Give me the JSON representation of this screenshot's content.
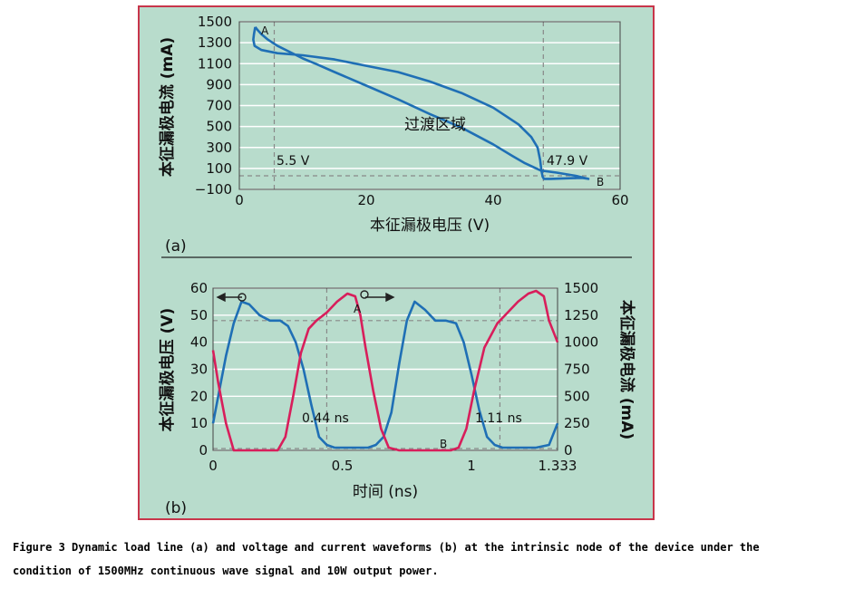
{
  "chart_data": [
    {
      "type": "line",
      "panel_label": "(a)",
      "xlabel": "本征漏极电压 (V)",
      "ylabel": "本征漏极电流 (mA)",
      "xlim": [
        0,
        60
      ],
      "ylim": [
        -100,
        1500
      ],
      "x_ticks": [
        "0",
        "20",
        "40",
        "60"
      ],
      "y_ticks": [
        "−100",
        "100",
        "300",
        "500",
        "700",
        "900",
        "1100",
        "1300",
        "1500"
      ],
      "grid": "horizontal",
      "annotations": {
        "region": "过渡区域",
        "point_a": "A",
        "point_b": "B",
        "v_left": "5.5 V",
        "v_right": "47.9 V"
      },
      "reference_lines": {
        "x": [
          5.5,
          47.9
        ],
        "y": [
          30
        ]
      },
      "series": [
        {
          "x": [
            2.5,
            2.3,
            2.2,
            2.4,
            3.5,
            6,
            10,
            15,
            20,
            25,
            30,
            35,
            40,
            44,
            46,
            47,
            47.4,
            47.6,
            47.8,
            48,
            48.3,
            49,
            51,
            54,
            55,
            53,
            50,
            47.5,
            45,
            43,
            40,
            35,
            30,
            25,
            20,
            15,
            12,
            10,
            8,
            6,
            4.5,
            3.5,
            2.9,
            2.5
          ],
          "y": [
            1450,
            1380,
            1330,
            1270,
            1230,
            1200,
            1180,
            1140,
            1080,
            1020,
            930,
            820,
            680,
            520,
            400,
            300,
            180,
            80,
            20,
            0,
            0,
            0,
            5,
            10,
            0,
            30,
            60,
            80,
            150,
            220,
            330,
            490,
            620,
            760,
            890,
            1020,
            1100,
            1150,
            1210,
            1270,
            1330,
            1380,
            1420,
            1450
          ]
        }
      ]
    },
    {
      "type": "line",
      "panel_label": "(b)",
      "xlabel": "时间 (ns)",
      "ylabel_left": "本征漏极电压 (V)",
      "ylabel_right": "本征漏极电流 (mA)",
      "xlim": [
        0,
        1.333
      ],
      "ylim_left": [
        0,
        60
      ],
      "ylim_right": [
        0,
        1500
      ],
      "x_ticks": [
        "0",
        "0.5",
        "1",
        "1.333"
      ],
      "y_ticks_left": [
        "0",
        "10",
        "20",
        "30",
        "40",
        "50",
        "60"
      ],
      "y_ticks_right": [
        "0",
        "250",
        "500",
        "750",
        "1000",
        "1250",
        "1500"
      ],
      "grid": "horizontal",
      "annotations": {
        "t1": "0.44 ns",
        "t2": "1.11 ns",
        "point_a": "A",
        "point_b": "B"
      },
      "reference_lines": {
        "x": [
          0.44,
          1.11
        ],
        "y_left": [
          48
        ]
      },
      "series": [
        {
          "axis": "left",
          "color": "#1f6fb5",
          "x": [
            0,
            0.02,
            0.05,
            0.08,
            0.11,
            0.14,
            0.18,
            0.22,
            0.26,
            0.29,
            0.32,
            0.35,
            0.38,
            0.41,
            0.44,
            0.47,
            0.5,
            0.55,
            0.6,
            0.63,
            0.66,
            0.69,
            0.72,
            0.75,
            0.78,
            0.82,
            0.86,
            0.9,
            0.94,
            0.97,
            1.0,
            1.03,
            1.06,
            1.09,
            1.12,
            1.15,
            1.2,
            1.25,
            1.3,
            1.333
          ],
          "y": [
            10,
            20,
            35,
            47,
            55,
            54,
            50,
            48,
            48,
            46,
            40,
            30,
            17,
            5,
            2,
            1,
            1,
            1,
            1,
            2,
            5,
            14,
            32,
            48,
            55,
            52,
            48,
            48,
            47,
            40,
            28,
            15,
            5,
            2,
            1,
            1,
            1,
            1,
            2,
            10
          ]
        },
        {
          "axis": "left",
          "color": "#d81e5b",
          "x": [
            0,
            0.02,
            0.05,
            0.08,
            0.12,
            0.2,
            0.25,
            0.28,
            0.31,
            0.34,
            0.37,
            0.4,
            0.44,
            0.48,
            0.52,
            0.55,
            0.57,
            0.59,
            0.62,
            0.65,
            0.68,
            0.72,
            0.8,
            0.88,
            0.92,
            0.95,
            0.98,
            1.01,
            1.05,
            1.1,
            1.14,
            1.18,
            1.22,
            1.25,
            1.28,
            1.3,
            1.333
          ],
          "y": [
            37,
            25,
            10,
            0,
            0,
            0,
            0,
            5,
            20,
            36,
            45,
            48,
            51,
            55,
            58,
            57,
            50,
            38,
            22,
            8,
            1,
            0,
            0,
            0,
            0,
            1,
            8,
            22,
            38,
            47,
            51,
            55,
            58,
            59,
            57,
            48,
            40
          ]
        }
      ]
    }
  ],
  "caption": {
    "line1": "Figure 3 Dynamic load line (a) and voltage and current waveforms (b) at the intrinsic node of the device under the",
    "line2": "condition of 1500MHz continuous wave signal and 10W output power."
  },
  "colors": {
    "background_panel": "#b8dccc",
    "frame": "#c8354a",
    "blue_curve": "#1f6fb5",
    "red_curve": "#d81e5b",
    "grid": "#ffffff"
  }
}
